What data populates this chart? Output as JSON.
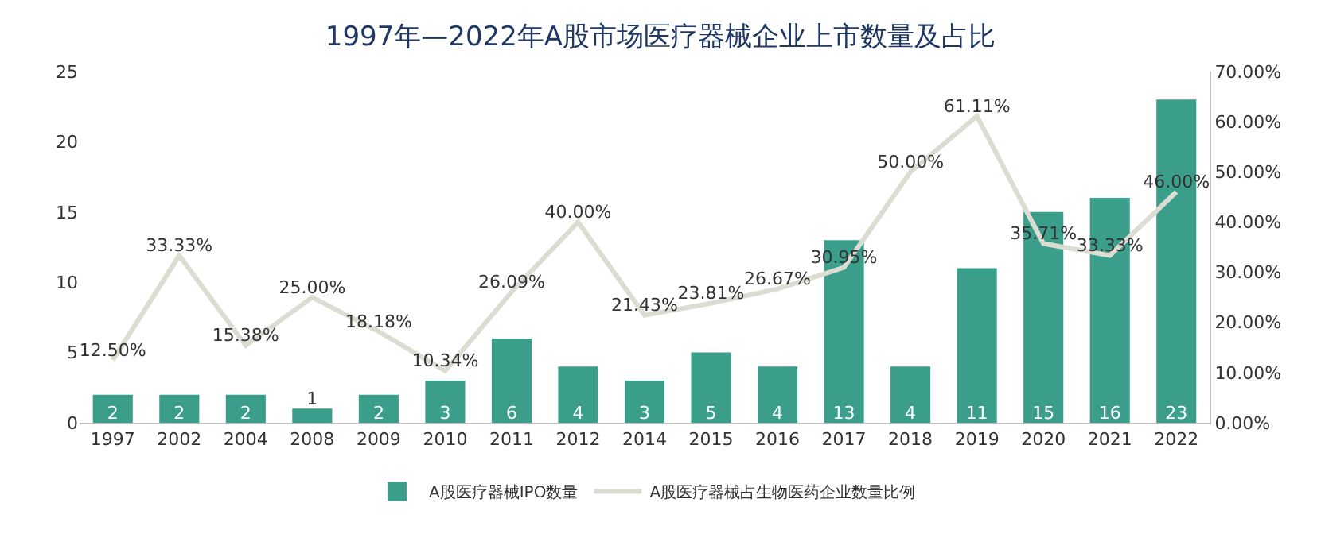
{
  "chart_data": {
    "type": "bar",
    "title": "1997年—2022年A股市场医疗器械企业上市数量及占比",
    "categories": [
      "1997",
      "2002",
      "2004",
      "2008",
      "2009",
      "2010",
      "2011",
      "2012",
      "2014",
      "2015",
      "2016",
      "2017",
      "2018",
      "2019",
      "2020",
      "2021",
      "2022"
    ],
    "series": [
      {
        "name": "A股医疗器械IPO数量",
        "color": "#3a9e8a",
        "values": [
          2,
          2,
          2,
          1,
          2,
          3,
          6,
          4,
          3,
          5,
          4,
          13,
          4,
          11,
          15,
          16,
          23
        ],
        "value_labels": [
          "2",
          "2",
          "2",
          "1",
          "2",
          "3",
          "6",
          "4",
          "3",
          "5",
          "4",
          "13",
          "4",
          "11",
          "15",
          "16",
          "23"
        ]
      },
      {
        "name": "A股医疗器械占生物医药企业数量比例",
        "type": "line",
        "axis": "y2",
        "color": "#dcdcd2",
        "values": [
          12.5,
          33.33,
          15.38,
          25,
          18.18,
          10.34,
          26.09,
          40,
          21.43,
          23.81,
          26.67,
          30.95,
          50,
          61.11,
          35.71,
          33.33,
          46
        ],
        "value_labels": [
          "12.50%",
          "33.33%",
          "15.38%",
          "25.00%",
          "18.18%",
          "10.34%",
          "26.09%",
          "40.00%",
          "21.43%",
          "23.81%",
          "26.67%",
          "30.95%",
          "50.00%",
          "61.11%",
          "35.71%",
          "33.33%",
          "46.00%"
        ]
      }
    ],
    "ylim": [
      0,
      25
    ],
    "yticks": [
      0,
      5,
      10,
      15,
      20,
      25
    ],
    "y2lim": [
      0,
      70
    ],
    "y2ticks": [
      {
        "value": 0,
        "label": "0.00%"
      },
      {
        "value": 10,
        "label": "10.00%"
      },
      {
        "value": 20,
        "label": "20.00%"
      },
      {
        "value": 30,
        "label": "30.00%"
      },
      {
        "value": 40,
        "label": "40.00%"
      },
      {
        "value": 50,
        "label": "50.00%"
      },
      {
        "value": 60,
        "label": "60.00%"
      },
      {
        "value": 70,
        "label": "70.00%"
      }
    ],
    "grid": false,
    "legend": "bottom",
    "marker": "none",
    "line_style": "solid"
  }
}
